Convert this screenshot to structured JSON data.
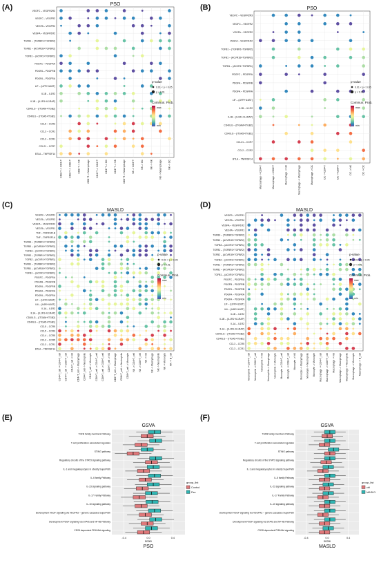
{
  "figure": {
    "panels": [
      "(A)",
      "(B)",
      "(C)",
      "(D)",
      "(E)",
      "(F)"
    ]
  },
  "legend": {
    "pvalue_title": "p-value",
    "pvalue_items": [
      "0.01 < p < 0.05",
      "p < 0.01"
    ],
    "prob_title": "Commun. Prob.",
    "prob_max": "max",
    "prob_min": "min"
  },
  "colors": {
    "scale": [
      "#5e4fa2",
      "#3288bd",
      "#66c2a5",
      "#abdda4",
      "#e6f598",
      "#fee08b",
      "#fdae61",
      "#f46d43",
      "#d53e4f",
      "#9e0142"
    ],
    "control": "#e0787a",
    "pso": "#2fb5b3",
    "masld": "#2fb5b3"
  },
  "chart_data": [
    {
      "panel": "(A)",
      "type": "scatter",
      "title": "PSO",
      "rows": [
        "VEGFC – VEGFR2R3",
        "VEGFC – VEGFR2",
        "VEGFA – VEGFR2",
        "VEGFA – VEGFR1R2",
        "TGFB1 – (TGFBR1+TGFBR2)",
        "TGFB1 – (ACVR1B+TGFBR2)",
        "TGFB1 – (ACVR1+TGFBR1)",
        "PDGFC – PDGFRA",
        "PDGFA – PDGFRB",
        "PDGFA – PDGFRA",
        "LIF – (LIFR+IL6ST)",
        "IL1B – IL1R2",
        "IL1B – (IL1R1+IL1RAP)",
        "CD40LG – (ITGAM+ITGB2)",
        "CD40LG – (ITGA5+ITGB1)",
        "CCL5 – CCR3",
        "CCL3 – CCR1",
        "CCL3 – CCR1",
        "CCL21 – CCR7",
        "BTLA – TNFRSF14"
      ],
      "cols": [
        "CD8+T -> CD4+T",
        "CD8+T -> CD8+T",
        "CD8+T -> NK",
        "CD8+T -> Macrophage",
        "CD4+T -> CD4+T",
        "CD4+T -> DC",
        "CD4+T -> NK",
        "CD4+T -> Macrophage",
        "NK -> CD4+T",
        "NK -> DC",
        "NK -> NK",
        "NK -> Macrophage",
        "NK -> DC"
      ],
      "seed": 11
    },
    {
      "panel": "(B)",
      "type": "scatter",
      "title": "PSO",
      "rows": [
        "VEGFC – VEGFR2R3",
        "VEGFC – VEGFR2",
        "VEGFA – VEGFR2",
        "VEGFA – VEGFR1R2",
        "TGFB1 – (TGFBR1+TGFBR2)",
        "TGFB1 – (ACVR1B+TGFBR2)",
        "TGFB1 – (ACVR1+TGFBR1)",
        "PDGFC – PDGFRA",
        "PDGFA – PDGFRB",
        "PDGFA – PDGFRA",
        "LIF – (LIFR+IL6ST)",
        "IL1B – IL1R2",
        "IL1B – (IL1R1+IL1RAP)",
        "CD40LG – (ITGAM+ITGB2)",
        "CD40LG – (ITGA5+ITGB1)",
        "CCL21 – CCR7",
        "CCL2 – CCR2",
        "BTLA – TNFRSF14"
      ],
      "cols": [
        "Macrophage -> CD4+T",
        "Macrophage -> CD8+T",
        "Macrophage -> NK",
        "Macrophage -> Macrophage",
        "Macrophage -> DC",
        "DC -> CD4+T",
        "DC -> CD8+T",
        "DC -> NK",
        "DC -> DC"
      ],
      "seed": 23
    },
    {
      "panel": "(C)",
      "type": "scatter",
      "title": "MASLD",
      "rows": [
        "VEGFB – VEGFR1",
        "VEGFA – VEGFR2",
        "VEGFA – VEGFR1R2",
        "VEGFA – VEGFR1",
        "TNF – TNFRSF1B",
        "TNF – TNFRSF1A",
        "TGFB3 – (TGFBR1+TGFBR2)",
        "TGFB3 – (ACVR1B+TGFBR2)",
        "TGFB3 – (ACVR1+TGFBR1)",
        "TGFB2 – (TGFBR1+TGFBR2)",
        "TGFB2 – (ACVR1+TGFBR1)",
        "TGFB1 – (TGFBR1+TGFBR2)",
        "TGFB1 – (ACVR1B+TGFBR2)",
        "TGFB1 – (ACVR1+TGFBR1)",
        "PDGFC – PDGFRA",
        "PDGFB – PDGFRB",
        "PDGFA – PDGFRB",
        "PDGFA – PDGFRA",
        "PDGFA – PDGFRA",
        "LIF – (LIFR+IL6ST)",
        "IL6 – (IL6R+IL6ST)",
        "IL1A – IL1R2",
        "IL1A – (IL1R1+IL1RAP)",
        "CD40LG – (ITGAM+ITGB2)",
        "CD40LG – (ITGA5+ITGB1)",
        "CCL5 – CCR5",
        "CCL5 – CCR3",
        "CCL4 – CCR5",
        "CCL3 – CCR5",
        "CCL3 – CCR1",
        "BTLA – TNFRSF14"
      ],
      "cols": [
        "CD4+T_cell -> CD4+T_cell",
        "CD4+T_cell -> CD8+T_cell",
        "CD4+T_cell -> NK",
        "CD4+T_cell -> Macrophage",
        "CD4+T_cell -> Neutrophils",
        "CD4+T_cell -> Monocyte",
        "CD8+T_cell -> CD4+T_cell",
        "CD8+T_cell -> CD8+T_cell",
        "CD8+T_cell -> NK",
        "CD8+T_cell -> Macrophage",
        "CD8+T_cell -> Neutrophils",
        "CD8+T_cell -> Monocyte",
        "NK -> CD4+T_cell",
        "NK -> CD8+T_cell",
        "NK -> NK",
        "NK -> Macrophage",
        "NK -> Neutrophils",
        "NK -> Monocyte",
        "NK -> B_cell"
      ],
      "seed": 37
    },
    {
      "panel": "(D)",
      "type": "scatter",
      "title": "MASLD",
      "rows": [
        "VEGFB – VEGFR1",
        "VEGFA – VEGFR2",
        "VEGFA – VEGFR1R2",
        "VEGFA – VEGFR1",
        "TGFB3 – (TGFBR1+TGFBR2)",
        "TGFB3 – (ACVR1B+TGFBR2)",
        "TGFB3 – (ACVR1+TGFBR1)",
        "TGFB2 – (TGFBR1+TGFBR2)",
        "TGFB2 – (ACVR1B+TGFBR2)",
        "TGFB2 – (ACVR1+TGFBR1)",
        "TGFB1 – (TGFBR1+TGFBR2)",
        "TGFB1 – (ACVR1B+TGFBR2)",
        "TGFB1 – (ACVR1+TGFBR1)",
        "PDGFC – PDGFRA",
        "PDGFB – PDGFRB",
        "PDGFA – PDGFRB",
        "PDGFA – PDGFRA",
        "PDGFA – PDGFRA",
        "LIF – (LIFR+IL6ST)",
        "IL6 – (IL6R+IL6ST)",
        "IL1B – IL1R2",
        "IL1B – (IL1R1+IL1RAP)",
        "IL1A – IL1R2",
        "IL1A – (IL1R1+IL1RAP)",
        "CD40LG – (ITGAM+ITGB2)",
        "CD40LG – (ITGA5+ITGB1)",
        "CCL3 – CCR5",
        "CCL3 – CCR1"
      ],
      "cols": [
        "Neutrophils -> CD4+T_cell",
        "Neutrophils -> CD8+T_cell",
        "Neutrophils -> NK",
        "Neutrophils -> Macrophage",
        "Neutrophils -> Monocyte",
        "Monocyte -> CD4+T_cell",
        "Monocyte -> CD8+T_cell",
        "Monocyte -> NK",
        "Monocyte -> Macrophage",
        "Monocyte -> Neutrophils",
        "Monocyte -> Monocyte",
        "Macrophage -> CD4+T_cell",
        "Macrophage -> CD8+T_cell",
        "Macrophage -> NK",
        "Macrophage -> Macrophage",
        "Macrophage -> Neutrophils",
        "Macrophage -> Monocyte",
        "Macrophage -> B_cell"
      ],
      "seed": 53
    },
    {
      "panel": "(E)",
      "type": "box",
      "title": "GSVA",
      "xlabel": "score",
      "caption": "PSO",
      "legend_title": "group_list",
      "legend": [
        "Control",
        "Pso"
      ],
      "xticks": [
        "-0.4",
        "0.0",
        "0.4"
      ],
      "xlim": [
        -0.6,
        0.6
      ],
      "pathways": [
        "TGFB family members Pathway",
        "T-cell proliferation associated regulates",
        "STING pathway",
        "Regulatory circuits of the STAT3 signaling pathway",
        "IL-1 and megakaryocytes in obesity SuperPath",
        "IL-6 family Pathway",
        "IL-23 signaling pathway",
        "IL-17 Family Pathway",
        "IL-10 signaling pathway",
        "Development VEGF signaling via VEGFR2 – generic cascades SuperPath",
        "Development PDGF signaling via STATs and NF-kB Pathway",
        "CD28 dependent PI3K/Akt signaling"
      ],
      "series": [
        {
          "name": "Control",
          "median": [
            -0.02,
            -0.12,
            -0.25,
            0.05,
            -0.08,
            -0.05,
            -0.1,
            -0.15,
            -0.12,
            -0.05,
            -0.02,
            -0.08
          ]
        },
        {
          "name": "Pso",
          "median": [
            0.1,
            0.12,
            -0.02,
            0.12,
            0.08,
            0.1,
            0.08,
            0.05,
            0.06,
            0.1,
            0.12,
            0.05
          ]
        }
      ]
    },
    {
      "panel": "(F)",
      "type": "box",
      "title": "GSVA",
      "xlabel": "score",
      "caption": "MASLD",
      "legend_title": "group_list",
      "legend": [
        "ctrl",
        "MASLD"
      ],
      "xticks": [
        "-0.4",
        "0.0",
        "0.4"
      ],
      "xlim": [
        -0.6,
        0.6
      ],
      "pathways": [
        "TGFB family members Pathway",
        "T-cell proliferation associated regulates",
        "STING pathway",
        "Regulatory circuits of the STAT3 signaling pathway",
        "IL-1 and megakaryocytes in obesity SuperPath",
        "IL-6 family Pathway",
        "IL-23 signaling pathway",
        "IL-17 Family Pathway",
        "IL-10 signaling pathway",
        "Development VEGF signaling via VEGFR2 – generic cascades SuperPath",
        "Development PDGF signaling via STATs and NF-kB Pathway",
        "CD28 dependent PI3K/Akt signaling"
      ],
      "series": [
        {
          "name": "ctrl",
          "median": [
            0.0,
            -0.05,
            0.05,
            -0.02,
            -0.08,
            -0.05,
            -0.05,
            -0.08,
            -0.05,
            -0.08,
            -0.05,
            -0.05
          ]
        },
        {
          "name": "MASLD",
          "median": [
            0.05,
            0.05,
            0.12,
            0.05,
            0.02,
            0.05,
            0.02,
            0.02,
            0.05,
            0.05,
            0.05,
            0.02
          ]
        }
      ]
    }
  ]
}
